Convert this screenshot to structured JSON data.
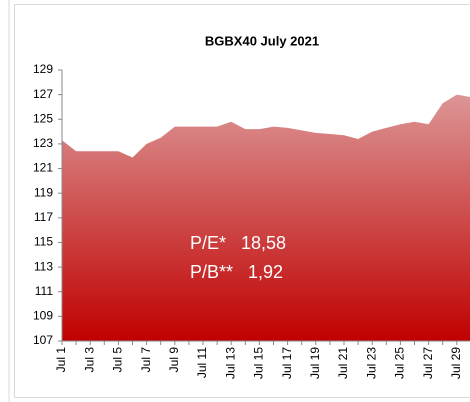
{
  "chart_data": {
    "type": "area",
    "title": "BGBX40  July 2021",
    "categories": [
      "Jul 1",
      null,
      "Jul 3",
      null,
      "Jul 5",
      null,
      "Jul 7",
      null,
      "Jul 9",
      null,
      "Jul 11",
      null,
      "Jul 13",
      null,
      "Jul 15",
      null,
      "Jul 17",
      null,
      "Jul 19",
      null,
      "Jul 21",
      null,
      "Jul 23",
      null,
      "Jul 25",
      null,
      "Jul 27",
      null,
      "Jul 29",
      null
    ],
    "values": [
      123.3,
      122.4,
      122.4,
      122.4,
      122.4,
      121.9,
      123.0,
      123.5,
      124.4,
      124.4,
      124.4,
      124.4,
      124.8,
      124.2,
      124.2,
      124.4,
      124.3,
      124.1,
      123.9,
      123.8,
      123.7,
      123.4,
      124.0,
      124.3,
      124.6,
      124.8,
      124.6,
      126.3,
      127.0,
      126.8
    ],
    "color": "#c00000",
    "ylim": [
      107,
      129
    ],
    "yticks": [
      107,
      109,
      111,
      113,
      115,
      117,
      119,
      121,
      123,
      125,
      127,
      129
    ],
    "annotations": [
      "P/E*   18,58",
      "P/B**   1,92"
    ]
  }
}
